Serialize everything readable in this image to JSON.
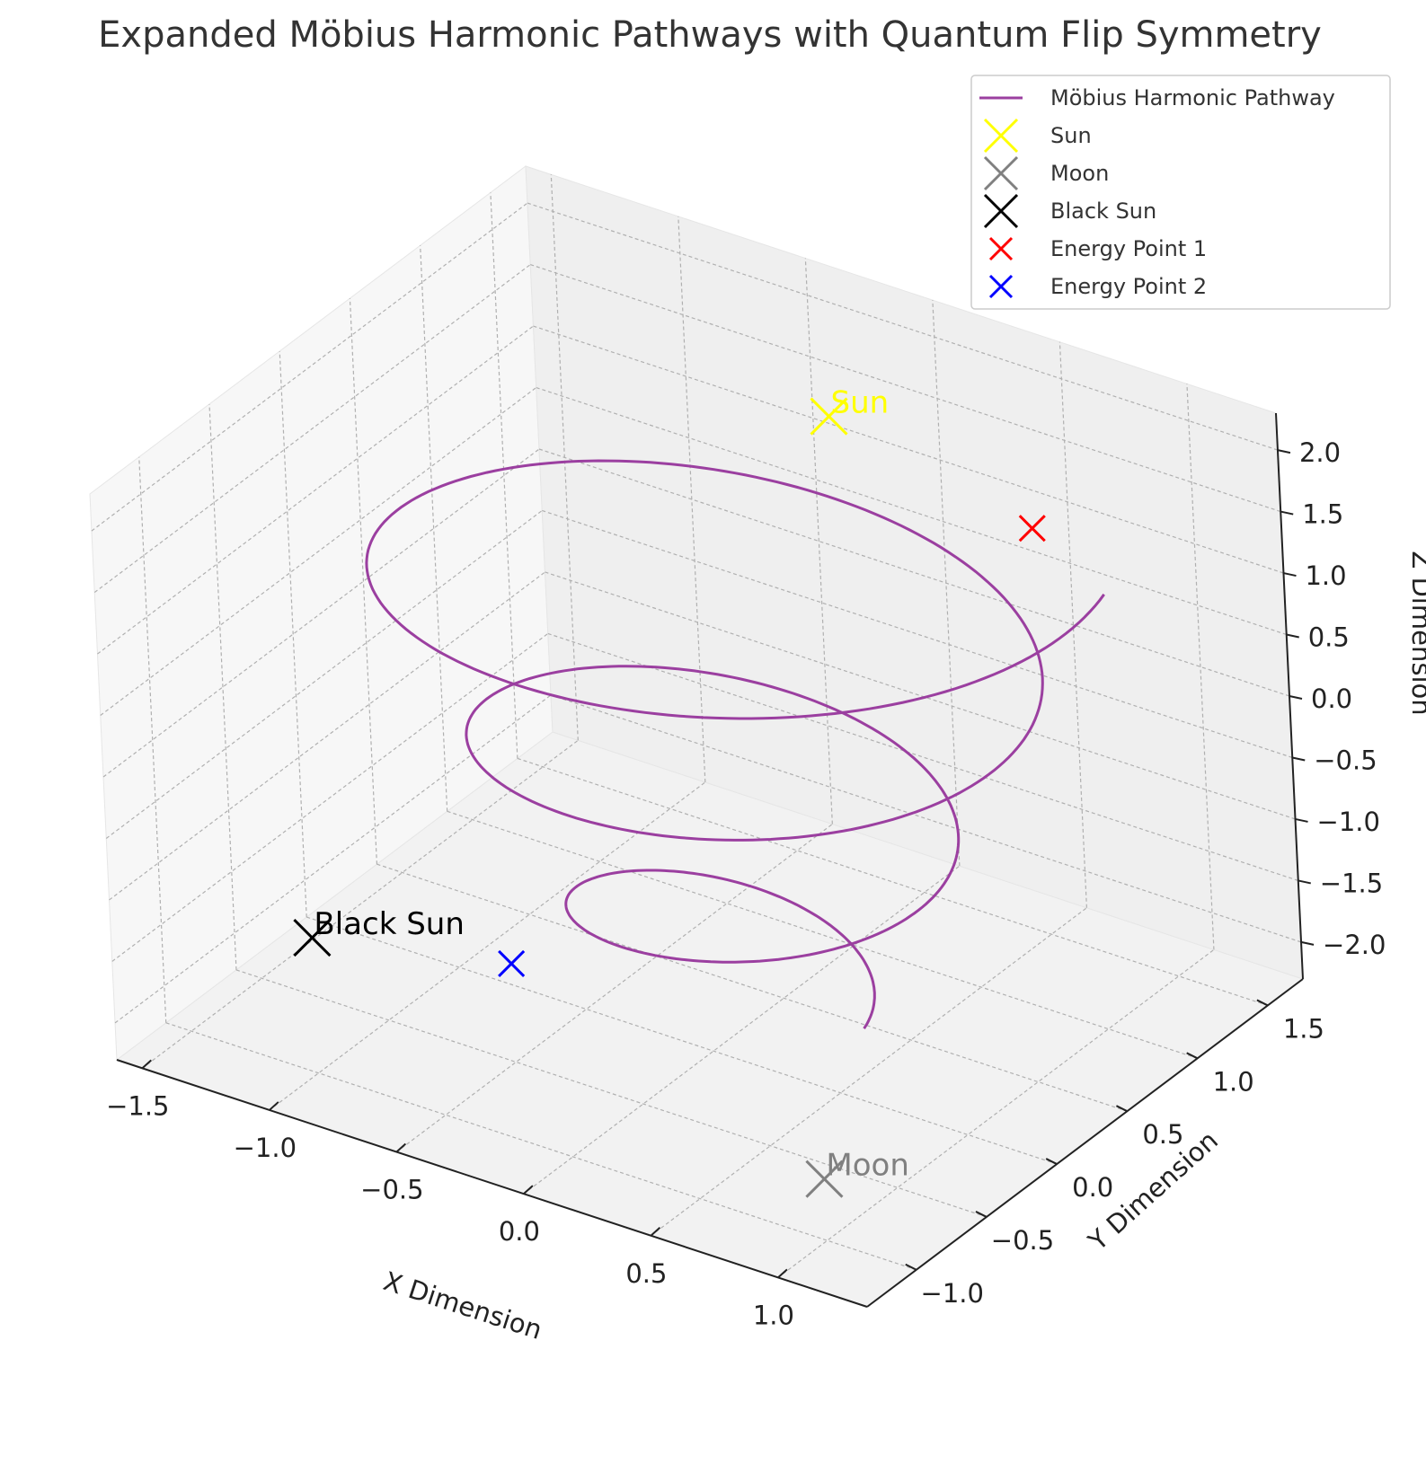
{
  "chart_data": {
    "type": "line3d",
    "title": "Expanded Möbius Harmonic Pathways with Quantum Flip Symmetry",
    "xlabel": "X Dimension",
    "ylabel": "Y Dimension",
    "zlabel": "Z Dimension",
    "xlim": [
      -1.6,
      1.35
    ],
    "ylim": [
      -1.35,
      1.75
    ],
    "zlim": [
      -2.3,
      2.3
    ],
    "xticks": [
      "−1.5",
      "−1.0",
      "−0.5",
      "0.0",
      "0.5",
      "1.0"
    ],
    "yticks": [
      "−1.0",
      "−0.5",
      "0.0",
      "0.5",
      "1.0",
      "1.5"
    ],
    "zticks": [
      "−2.0",
      "−1.5",
      "−1.0",
      "−0.5",
      "0.0",
      "0.5",
      "1.0",
      "1.5",
      "2.0"
    ],
    "grid": true,
    "legend": {
      "position": "top-right",
      "entries": [
        {
          "label": "Möbius Harmonic Pathway",
          "color": "#9b3fa0",
          "marker": "line"
        },
        {
          "label": "Sun",
          "color": "#ffff00",
          "marker": "x"
        },
        {
          "label": "Moon",
          "color": "#808080",
          "marker": "x"
        },
        {
          "label": "Black Sun",
          "color": "#000000",
          "marker": "x"
        },
        {
          "label": "Energy Point 1",
          "color": "#ff0000",
          "marker": "x"
        },
        {
          "label": "Energy Point 2",
          "color": "#0000ff",
          "marker": "x"
        }
      ]
    },
    "series": [
      {
        "name": "Möbius Harmonic Pathway",
        "color": "#9b3fa0",
        "curve": "spiral",
        "turns": 3,
        "t_range": [
          0,
          18.85
        ],
        "radius_range": [
          0.45,
          1.45
        ],
        "z_range": [
          -2.0,
          2.0
        ],
        "points": [
          [
            0.3,
            0.0,
            -2.0
          ],
          [
            0.0,
            1.5,
            2.0
          ]
        ]
      }
    ],
    "points": [
      {
        "name": "Sun",
        "x": 0.0,
        "y": 1.0,
        "z": 2.0,
        "color": "#ffff00",
        "size": "large",
        "label": "Sun"
      },
      {
        "name": "Moon",
        "x": 1.0,
        "y": -1.0,
        "z": -1.8,
        "color": "#808080",
        "size": "large",
        "label": "Moon"
      },
      {
        "name": "Black Sun",
        "x": -1.0,
        "y": -1.0,
        "z": -1.2,
        "color": "#000000",
        "size": "large",
        "label": "Black Sun"
      },
      {
        "name": "Energy Point 1",
        "x": 0.5,
        "y": 1.5,
        "z": 1.0,
        "color": "#ff0000",
        "size": "small",
        "label": ""
      },
      {
        "name": "Energy Point 2",
        "x": -0.5,
        "y": -0.5,
        "z": -1.5,
        "color": "#0000ff",
        "size": "small",
        "label": ""
      }
    ],
    "annotations": [
      {
        "text": "Sun",
        "color": "#ffff00"
      },
      {
        "text": "Moon",
        "color": "#808080"
      },
      {
        "text": "Black Sun",
        "color": "#000000"
      }
    ]
  }
}
